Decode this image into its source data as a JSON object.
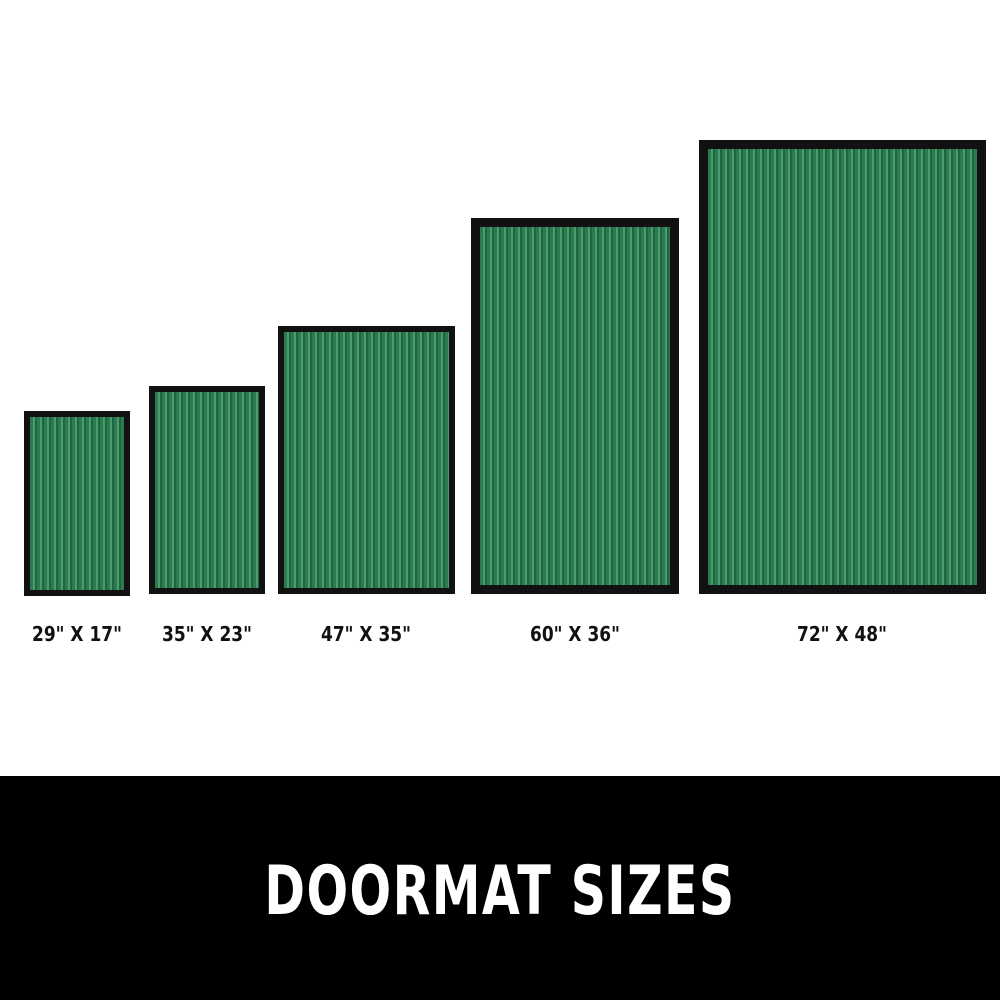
{
  "mats": [
    {
      "label": "29\" X 17\""
    },
    {
      "label": "35\" X 23\""
    },
    {
      "label": "47\" X 35\""
    },
    {
      "label": "60\" X 36\""
    },
    {
      "label": "72\" X 48\""
    }
  ],
  "colors": {
    "mat_green": "#2c7a4f",
    "mat_border": "#111111",
    "band": "#000000"
  },
  "title": "DOORMAT SIZES"
}
